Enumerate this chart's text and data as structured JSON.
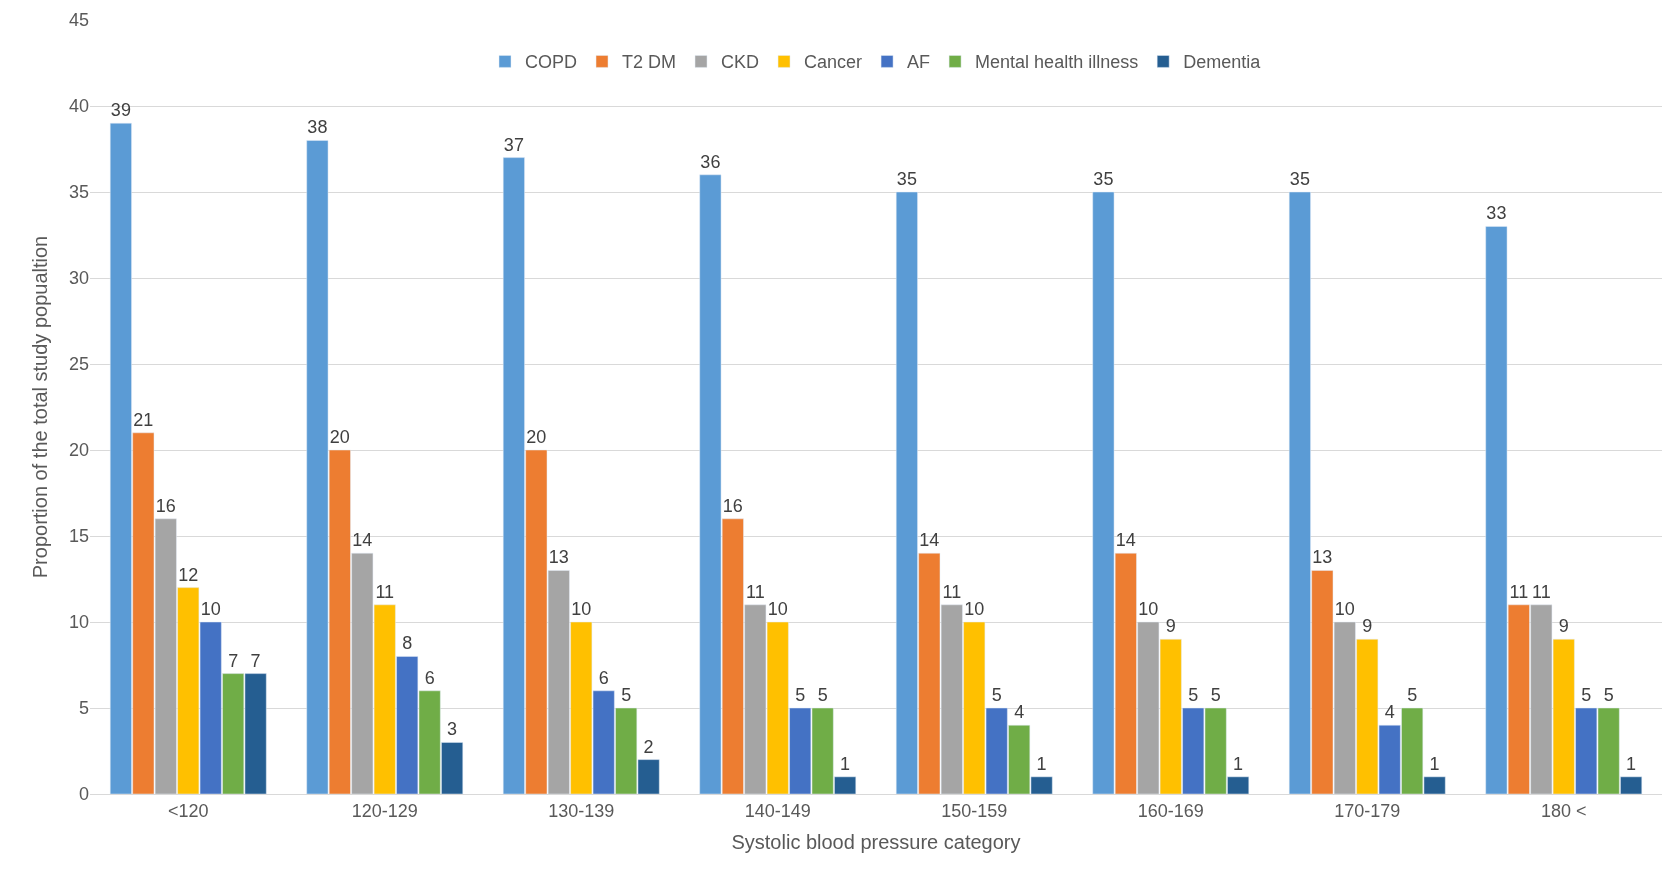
{
  "chart_data": {
    "type": "bar",
    "xlabel": "Systolic blood pressure category",
    "ylabel": "Proportion of the total study popualtion",
    "categories": [
      "<120",
      "120-129",
      "130-139",
      "140-149",
      "150-159",
      "160-169",
      "170-179",
      "180 <"
    ],
    "series": [
      {
        "name": "COPD",
        "color": "#5b9bd5",
        "values": [
          39,
          38,
          37,
          36,
          35,
          35,
          35,
          33
        ]
      },
      {
        "name": "T2 DM",
        "color": "#ed7d31",
        "values": [
          21,
          20,
          20,
          16,
          14,
          14,
          13,
          11
        ]
      },
      {
        "name": "CKD",
        "color": "#a5a5a5",
        "values": [
          16,
          14,
          13,
          11,
          11,
          10,
          10,
          11
        ]
      },
      {
        "name": "Cancer",
        "color": "#ffc000",
        "values": [
          12,
          11,
          10,
          10,
          10,
          9,
          9,
          9
        ]
      },
      {
        "name": "AF",
        "color": "#4472c4",
        "values": [
          10,
          8,
          6,
          5,
          5,
          5,
          4,
          5
        ]
      },
      {
        "name": "Mental health illness",
        "color": "#70ad47",
        "values": [
          7,
          6,
          5,
          5,
          4,
          5,
          5,
          5
        ]
      },
      {
        "name": "Dementia",
        "color": "#255e91",
        "values": [
          7,
          3,
          2,
          1,
          1,
          1,
          1,
          1
        ]
      }
    ],
    "ylim": [
      0,
      45
    ],
    "yticks": [
      0,
      5,
      10,
      15,
      20,
      25,
      30,
      35,
      40,
      45
    ],
    "grid": "y",
    "legend": "top",
    "data_labels": true
  }
}
